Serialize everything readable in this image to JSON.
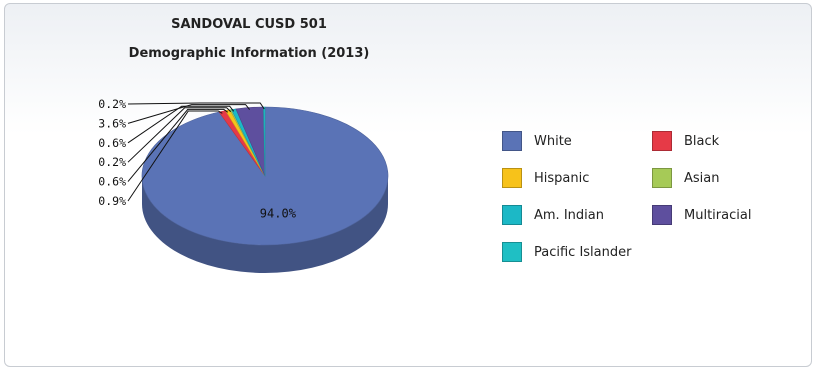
{
  "chart_data": {
    "type": "pie",
    "title": "SANDOVAL CUSD 501",
    "subtitle": "Demographic Information (2013)",
    "slices": [
      {
        "name": "White",
        "value": 94.0,
        "label": "94.0%",
        "color": "#5a73b6"
      },
      {
        "name": "Black",
        "value": 0.9,
        "label": "0.9%",
        "color": "#e63a47"
      },
      {
        "name": "Hispanic",
        "value": 0.6,
        "label": "0.6%",
        "color": "#f7c21a"
      },
      {
        "name": "Asian",
        "value": 0.2,
        "label": "0.2%",
        "color": "#a6ca57"
      },
      {
        "name": "Am. Indian",
        "value": 0.6,
        "label": "0.6%",
        "color": "#1cb8c6"
      },
      {
        "name": "Multiracial",
        "value": 3.6,
        "label": "3.6%",
        "color": "#5e4f9e"
      },
      {
        "name": "Pacific Islander",
        "value": 0.2,
        "label": "0.2%",
        "color": "#1fbfc4"
      }
    ],
    "legend_position": "right"
  }
}
